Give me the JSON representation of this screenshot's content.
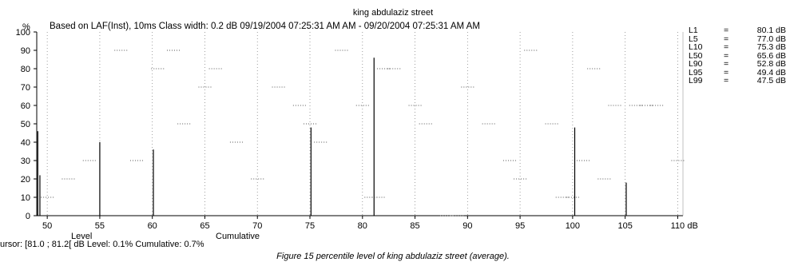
{
  "chart_data": {
    "type": "bar",
    "title": "king abdulaziz street",
    "subtitle": "Based on LAF(Inst), 10ms   Class width: 0.2 dB  09/19/2004 07:25:31 AM AM - 09/20/2004 07:25:31 AM AM",
    "ylabel": "%",
    "xunit": "dB",
    "xlim": [
      49,
      110.5
    ],
    "ylim": [
      0,
      100
    ],
    "x_ticks": [
      50,
      55,
      60,
      65,
      70,
      75,
      80,
      85,
      90,
      95,
      100,
      105,
      110
    ],
    "y_ticks": [
      0,
      10,
      20,
      30,
      40,
      50,
      60,
      70,
      80,
      90,
      100
    ],
    "level_label": "Level",
    "cumulative_label": "Cumulative",
    "level_series": {
      "name": "Level",
      "x": [
        49.1,
        49.3,
        55.0,
        60.1,
        75.1,
        81.1,
        100.2,
        105.1
      ],
      "values": [
        46,
        22,
        40,
        36,
        48,
        86,
        48,
        18
      ]
    },
    "cumulative_series": {
      "name": "Cumulative",
      "x": [
        50.0,
        52.0,
        54.0,
        57.0,
        58.5,
        60.5,
        62.0,
        63.0,
        65.0,
        66.0,
        68.0,
        70.0,
        72.0,
        74.0,
        75.0,
        76.0,
        78.0,
        80.0,
        80.8,
        81.5,
        82.0,
        83.0,
        85.0,
        86.0,
        88.0,
        89.0,
        90.0,
        92.0,
        94.0,
        95.0,
        96.0,
        98.0,
        99.0,
        100.0,
        101.0,
        102.0,
        103.0,
        104.0,
        106.0,
        107.0,
        108.0,
        110.0
      ],
      "values": [
        10,
        20,
        30,
        90,
        30,
        80,
        90,
        50,
        70,
        80,
        40,
        20,
        70,
        60,
        50,
        40,
        90,
        60,
        10,
        10,
        80,
        80,
        60,
        50,
        0,
        0,
        70,
        50,
        30,
        20,
        90,
        50,
        10,
        10,
        30,
        80,
        20,
        60,
        60,
        60,
        60,
        30
      ]
    },
    "stats": [
      {
        "label": "L1",
        "value": "80.1 dB"
      },
      {
        "label": "L5",
        "value": "77.0 dB"
      },
      {
        "label": "L10",
        "value": "75.3 dB"
      },
      {
        "label": "L50",
        "value": "65.6 dB"
      },
      {
        "label": "L90",
        "value": "52.8 dB"
      },
      {
        "label": "L95",
        "value": "49.4 dB"
      },
      {
        "label": "L99",
        "value": "47.5 dB"
      }
    ],
    "stats_eq": "=",
    "cursor_text": "ursor: [81.0 ; 81.2[ dB   Level: 0.1%   Cumulative: 0.7%",
    "caption": "Figure 15  percentile level of king abdulaziz street (average).",
    "colors": {
      "axis": "#000000",
      "level": "#000000",
      "cumulative": "#555555"
    }
  }
}
